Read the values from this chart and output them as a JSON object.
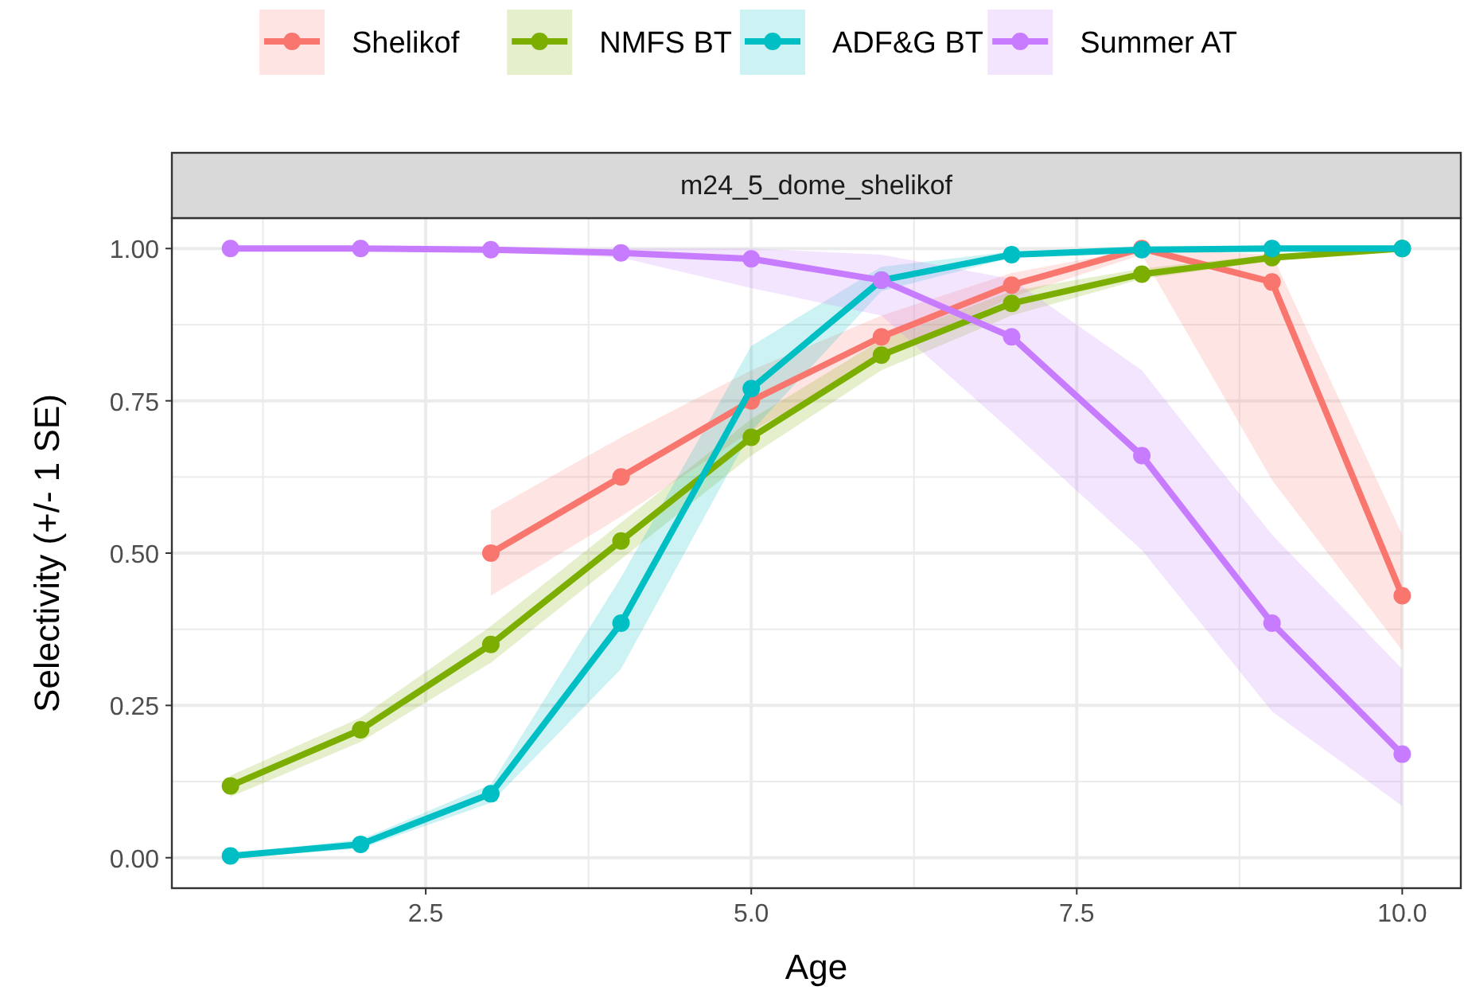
{
  "chart_data": {
    "type": "line",
    "title": "m24_5_dome_shelikof",
    "xlabel": "Age",
    "ylabel": "Selectivity (+/- 1 SE)",
    "xlim": [
      0.55,
      10.45
    ],
    "ylim": [
      -0.05,
      1.05
    ],
    "xticks": [
      {
        "value": 2.5,
        "label": "2.5"
      },
      {
        "value": 5,
        "label": "5.0"
      },
      {
        "value": 7.5,
        "label": "7.5"
      },
      {
        "value": 10,
        "label": "10.0"
      }
    ],
    "yticks": [
      {
        "value": 0,
        "label": "0.00"
      },
      {
        "value": 0.25,
        "label": "0.25"
      },
      {
        "value": 0.5,
        "label": "0.50"
      },
      {
        "value": 0.75,
        "label": "0.75"
      },
      {
        "value": 1,
        "label": "1.00"
      }
    ],
    "grid": true,
    "legend": "top",
    "marker": "circle",
    "line_style": "solid",
    "series": [
      {
        "name": "Shelikof",
        "color": "#f8766d",
        "x": [
          3,
          4,
          5,
          6,
          7,
          8,
          9,
          10
        ],
        "values": [
          0.5,
          0.625,
          0.75,
          0.855,
          0.94,
          1.0,
          0.945,
          0.43
        ],
        "lower": [
          0.43,
          0.56,
          0.7,
          0.82,
          0.92,
          0.99,
          0.62,
          0.34
        ],
        "upper": [
          0.57,
          0.69,
          0.8,
          0.89,
          0.96,
          1.0,
          0.99,
          0.53
        ]
      },
      {
        "name": "NMFS BT",
        "color": "#7cae00",
        "x": [
          1,
          2,
          3,
          4,
          5,
          6,
          7,
          8,
          9,
          10
        ],
        "values": [
          0.118,
          0.21,
          0.35,
          0.52,
          0.69,
          0.825,
          0.91,
          0.958,
          0.985,
          1.0
        ],
        "lower": [
          0.1,
          0.19,
          0.32,
          0.49,
          0.66,
          0.8,
          0.89,
          0.95,
          0.98,
          1.0
        ],
        "upper": [
          0.135,
          0.23,
          0.38,
          0.55,
          0.72,
          0.85,
          0.93,
          0.967,
          0.99,
          1.0
        ]
      },
      {
        "name": "ADF&G BT",
        "color": "#00bfc4",
        "x": [
          1,
          2,
          3,
          4,
          5,
          6,
          7,
          8,
          9,
          10
        ],
        "values": [
          0.003,
          0.022,
          0.105,
          0.385,
          0.77,
          0.948,
          0.99,
          0.998,
          1.0,
          1.0
        ],
        "lower": [
          0.0,
          0.015,
          0.09,
          0.31,
          0.7,
          0.93,
          0.985,
          0.997,
          1.0,
          1.0
        ],
        "upper": [
          0.006,
          0.03,
          0.12,
          0.46,
          0.84,
          0.97,
          0.995,
          0.999,
          1.0,
          1.0
        ]
      },
      {
        "name": "Summer AT",
        "color": "#c77cff",
        "x": [
          1,
          2,
          3,
          4,
          5,
          6,
          7,
          8,
          9,
          10
        ],
        "values": [
          1.0,
          1.0,
          0.998,
          0.993,
          0.983,
          0.948,
          0.855,
          0.66,
          0.385,
          0.17
        ],
        "lower": [
          1.0,
          1.0,
          0.995,
          0.985,
          0.935,
          0.89,
          0.7,
          0.505,
          0.24,
          0.085
        ],
        "upper": [
          1.0,
          1.0,
          1.0,
          1.0,
          1.0,
          0.99,
          0.95,
          0.8,
          0.53,
          0.31
        ]
      }
    ]
  }
}
